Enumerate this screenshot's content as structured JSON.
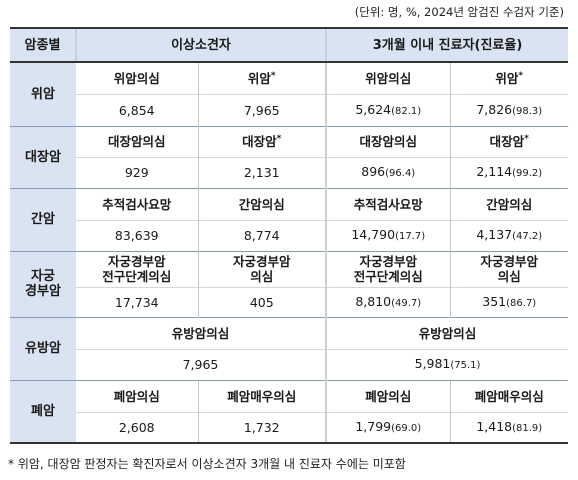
{
  "unit_note": "(단위: 명, %, 2024년 암검진 수검자 기준)",
  "header": {
    "cancer_type": "암종별",
    "abnormal": "이상소견자",
    "treated": "3개월 이내 진료자(진료율)"
  },
  "rows": {
    "stomach": {
      "name": "위암",
      "label_a": "위암의심",
      "label_b": "위암",
      "label_b_mark": "*",
      "abn_a": "6,854",
      "abn_b": "7,965",
      "trt_a": "5,624",
      "trt_a_rate": "(82.1)",
      "trt_b": "7,826",
      "trt_b_rate": "(98.3)"
    },
    "colorectal": {
      "name": "대장암",
      "label_a": "대장암의심",
      "label_b": "대장암",
      "label_b_mark": "*",
      "abn_a": "929",
      "abn_b": "2,131",
      "trt_a": "896",
      "trt_a_rate": "(96.4)",
      "trt_b": "2,114",
      "trt_b_rate": "(99.2)"
    },
    "liver": {
      "name": "간암",
      "label_a": "추적검사요망",
      "label_b": "간암의심",
      "abn_a": "83,639",
      "abn_b": "8,774",
      "trt_a": "14,790",
      "trt_a_rate": "(17.7)",
      "trt_b": "4,137",
      "trt_b_rate": "(47.2)"
    },
    "cervical": {
      "name_line1": "자궁",
      "name_line2": "경부암",
      "label_a_line1": "자궁경부암",
      "label_a_line2": "전구단계의심",
      "label_b_line1": "자궁경부암",
      "label_b_line2": "의심",
      "abn_a": "17,734",
      "abn_b": "405",
      "trt_a": "8,810",
      "trt_a_rate": "(49.7)",
      "trt_b": "351",
      "trt_b_rate": "(86.7)"
    },
    "breast": {
      "name": "유방암",
      "label": "유방암의심",
      "abn": "7,965",
      "trt": "5,981",
      "trt_rate": "(75.1)"
    },
    "lung": {
      "name": "폐암",
      "label_a": "폐암의심",
      "label_b": "폐암매우의심",
      "abn_a": "2,608",
      "abn_b": "1,732",
      "trt_a": "1,799",
      "trt_a_rate": "(69.0)",
      "trt_b": "1,418",
      "trt_b_rate": "(81.9)"
    }
  },
  "footnote": "* 위암, 대장암 판정자는 확진자로서 이상소견자 3개월 내 진료자 수에는 미포함"
}
